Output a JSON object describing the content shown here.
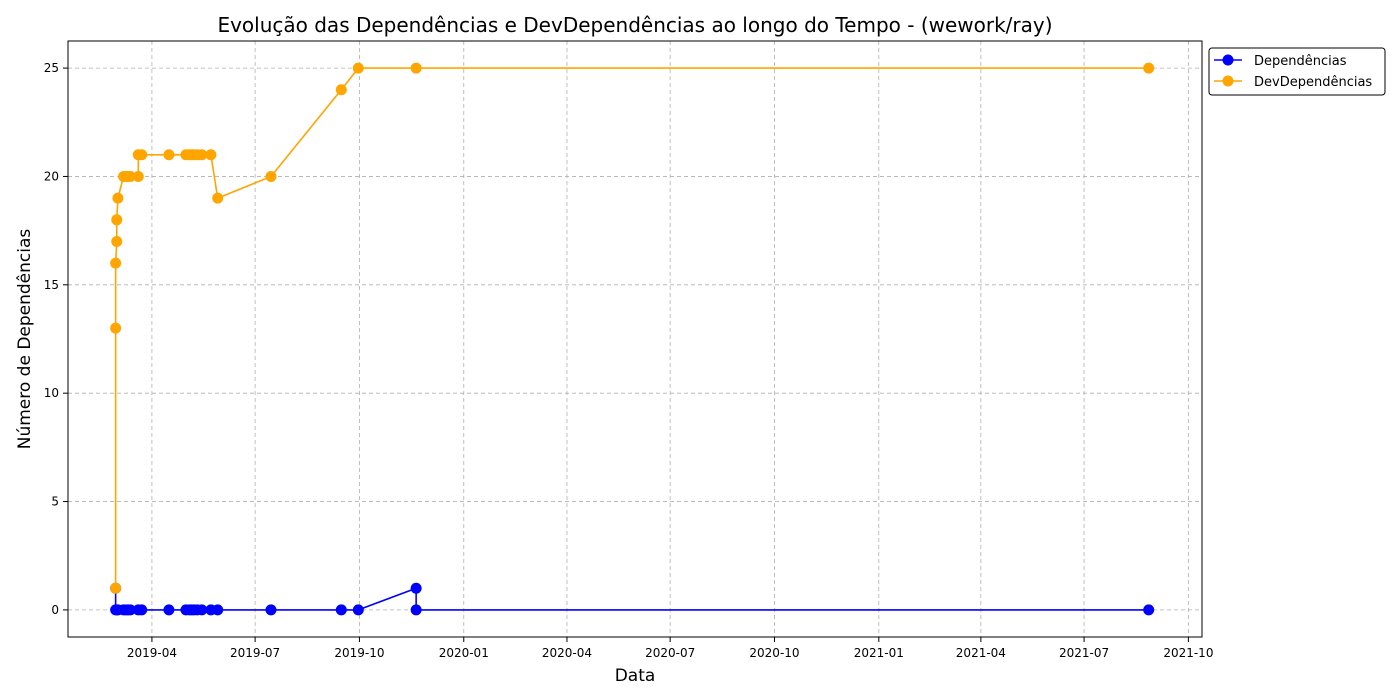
{
  "chart_data": {
    "type": "line",
    "title": "Evolução das Dependências e DevDependências ao longo do Tempo - (wework/ray)",
    "xlabel": "Data",
    "ylabel": "Número de Dependências",
    "xlim": [
      "2019-01-17",
      "2021-10-13"
    ],
    "ylim": [
      -1.25,
      26.25
    ],
    "x_ticks": [
      "2019-04-01",
      "2019-07-01",
      "2019-10-01",
      "2020-01-01",
      "2020-04-01",
      "2020-07-01",
      "2020-10-01",
      "2021-01-01",
      "2021-04-01",
      "2021-07-01",
      "2021-10-01"
    ],
    "x_tick_labels": [
      "2019-04",
      "2019-07",
      "2019-10",
      "2020-01",
      "2020-04",
      "2020-07",
      "2020-10",
      "2021-01",
      "2021-04",
      "2021-07",
      "2021-10"
    ],
    "y_ticks": [
      0,
      5,
      10,
      15,
      20,
      25
    ],
    "grid": true,
    "legend_position": "outside-top-right",
    "series": [
      {
        "name": "Dependências",
        "color": "#0000ff",
        "marker": "circle",
        "points": [
          [
            "2019-02-28",
            1
          ],
          [
            "2019-02-28",
            0
          ],
          [
            "2019-03-01",
            0
          ],
          [
            "2019-03-02",
            0
          ],
          [
            "2019-03-07",
            0
          ],
          [
            "2019-03-09",
            0
          ],
          [
            "2019-03-11",
            0
          ],
          [
            "2019-03-13",
            0
          ],
          [
            "2019-03-20",
            0
          ],
          [
            "2019-03-23",
            0
          ],
          [
            "2019-04-16",
            0
          ],
          [
            "2019-05-01",
            0
          ],
          [
            "2019-05-04",
            0
          ],
          [
            "2019-05-06",
            0
          ],
          [
            "2019-05-08",
            0
          ],
          [
            "2019-05-11",
            0
          ],
          [
            "2019-05-15",
            0
          ],
          [
            "2019-05-23",
            0
          ],
          [
            "2019-05-29",
            0
          ],
          [
            "2019-07-15",
            0
          ],
          [
            "2019-09-15",
            0
          ],
          [
            "2019-09-30",
            0
          ],
          [
            "2019-11-20",
            1
          ],
          [
            "2019-11-20",
            0
          ],
          [
            "2021-08-27",
            0
          ]
        ]
      },
      {
        "name": "DevDependências",
        "color": "#ffa500",
        "marker": "circle",
        "points": [
          [
            "2019-02-28",
            1
          ],
          [
            "2019-02-28",
            13
          ],
          [
            "2019-02-28",
            16
          ],
          [
            "2019-03-01",
            17
          ],
          [
            "2019-03-01",
            18
          ],
          [
            "2019-03-02",
            19
          ],
          [
            "2019-03-07",
            20
          ],
          [
            "2019-03-09",
            20
          ],
          [
            "2019-03-11",
            20
          ],
          [
            "2019-03-13",
            20
          ],
          [
            "2019-03-20",
            20
          ],
          [
            "2019-03-20",
            21
          ],
          [
            "2019-03-23",
            21
          ],
          [
            "2019-04-16",
            21
          ],
          [
            "2019-05-01",
            21
          ],
          [
            "2019-05-04",
            21
          ],
          [
            "2019-05-06",
            21
          ],
          [
            "2019-05-08",
            21
          ],
          [
            "2019-05-11",
            21
          ],
          [
            "2019-05-15",
            21
          ],
          [
            "2019-05-23",
            21
          ],
          [
            "2019-05-29",
            19
          ],
          [
            "2019-07-15",
            20
          ],
          [
            "2019-09-15",
            24
          ],
          [
            "2019-09-30",
            25
          ],
          [
            "2019-11-20",
            25
          ],
          [
            "2021-08-27",
            25
          ]
        ]
      }
    ]
  }
}
